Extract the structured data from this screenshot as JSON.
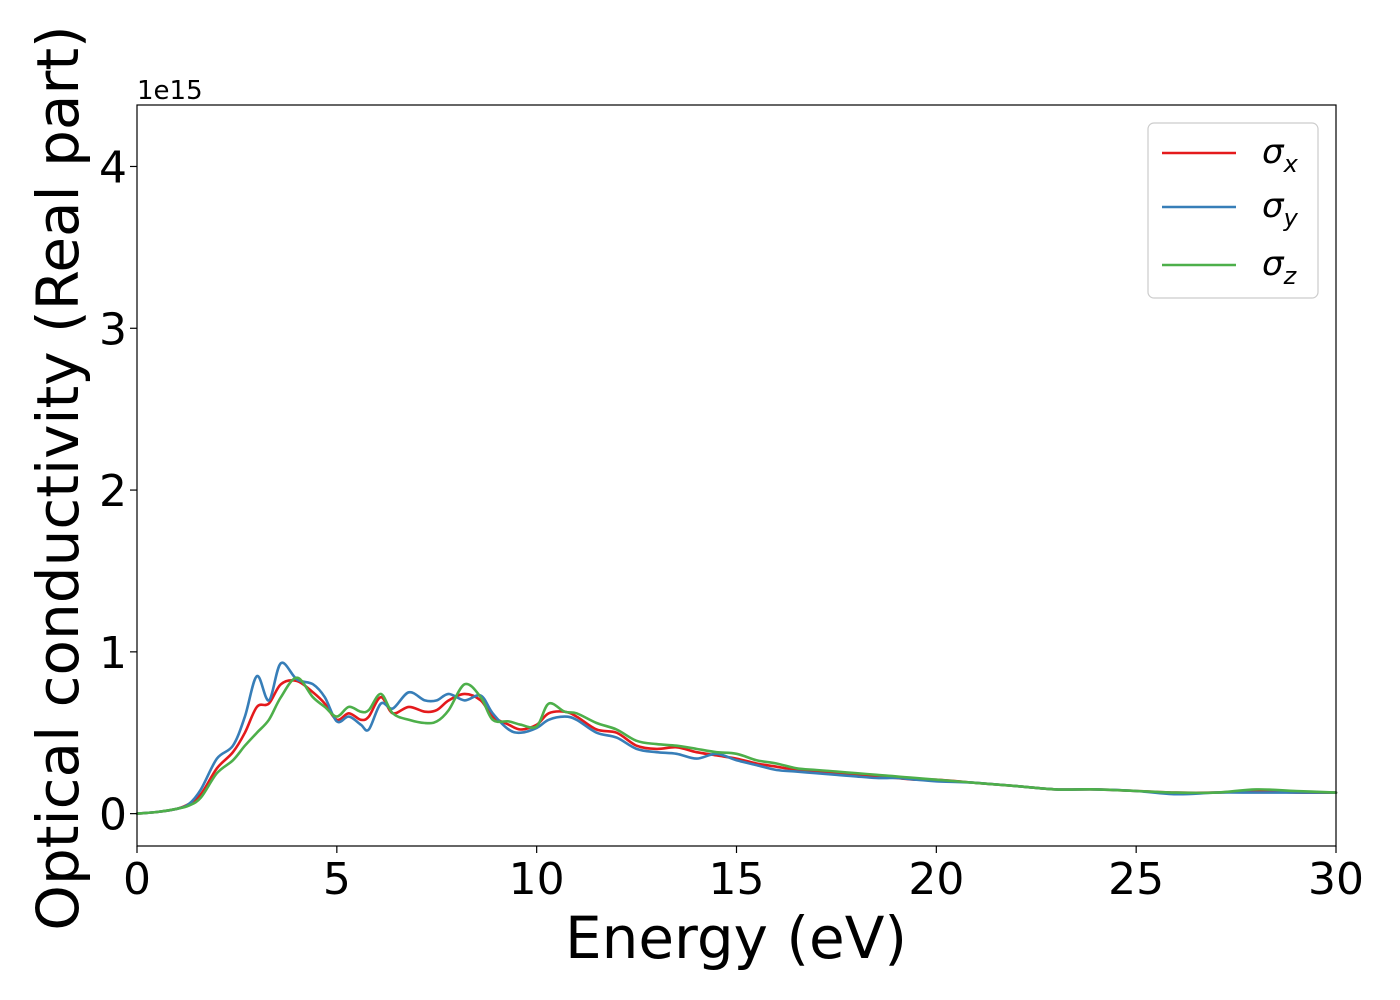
{
  "chart_data": {
    "type": "line",
    "xlabel": "Energy (eV)",
    "ylabel": "Optical conductivity (Real part)",
    "y_offset_label": "1e15",
    "xlim": [
      0,
      30
    ],
    "ylim": [
      -0.2,
      4.38
    ],
    "y_scale_multiplier": 1000000000000000.0,
    "x_ticks": [
      0,
      5,
      10,
      15,
      20,
      25,
      30
    ],
    "x_tick_labels": [
      "0",
      "5",
      "10",
      "15",
      "20",
      "25",
      "30"
    ],
    "y_ticks": [
      0,
      1,
      2,
      3,
      4
    ],
    "y_tick_labels": [
      "0",
      "1",
      "2",
      "3",
      "4"
    ],
    "grid": false,
    "legend_placement": "top-right",
    "x": [
      0,
      0.5,
      1.0,
      1.3,
      1.6,
      2.0,
      2.4,
      2.7,
      3.0,
      3.3,
      3.6,
      4.0,
      4.4,
      4.7,
      5.0,
      5.3,
      5.6,
      5.8,
      6.1,
      6.4,
      6.8,
      7.2,
      7.5,
      7.8,
      8.2,
      8.6,
      8.9,
      9.3,
      9.6,
      10.0,
      10.3,
      10.7,
      11.0,
      11.5,
      12.0,
      12.5,
      13.0,
      13.5,
      14.0,
      14.5,
      15.0,
      15.5,
      16.0,
      16.5,
      17.0,
      17.5,
      18.0,
      18.5,
      19.0,
      19.5,
      20.0,
      21.0,
      22.0,
      23.0,
      24.0,
      25.0,
      26.0,
      27.0,
      28.0,
      29.0,
      30.0
    ],
    "series": [
      {
        "name": "σ",
        "subscript": "x",
        "color": "#e41a1c",
        "values": [
          0,
          0.01,
          0.03,
          0.06,
          0.12,
          0.28,
          0.38,
          0.5,
          0.66,
          0.68,
          0.8,
          0.82,
          0.75,
          0.68,
          0.58,
          0.62,
          0.58,
          0.6,
          0.72,
          0.62,
          0.66,
          0.63,
          0.64,
          0.7,
          0.74,
          0.7,
          0.6,
          0.55,
          0.52,
          0.55,
          0.62,
          0.63,
          0.6,
          0.52,
          0.5,
          0.42,
          0.4,
          0.41,
          0.38,
          0.36,
          0.34,
          0.31,
          0.29,
          0.27,
          0.26,
          0.25,
          0.24,
          0.23,
          0.22,
          0.21,
          0.21,
          0.19,
          0.17,
          0.15,
          0.15,
          0.14,
          0.13,
          0.13,
          0.14,
          0.13,
          0.13
        ]
      },
      {
        "name": "σ",
        "subscript": "y",
        "color": "#377eb8",
        "values": [
          0,
          0.01,
          0.03,
          0.06,
          0.15,
          0.34,
          0.42,
          0.6,
          0.85,
          0.7,
          0.93,
          0.83,
          0.8,
          0.72,
          0.57,
          0.6,
          0.55,
          0.52,
          0.68,
          0.65,
          0.75,
          0.7,
          0.7,
          0.74,
          0.7,
          0.73,
          0.62,
          0.52,
          0.5,
          0.53,
          0.58,
          0.6,
          0.58,
          0.5,
          0.47,
          0.4,
          0.38,
          0.37,
          0.34,
          0.37,
          0.33,
          0.3,
          0.27,
          0.26,
          0.25,
          0.24,
          0.23,
          0.22,
          0.22,
          0.21,
          0.2,
          0.19,
          0.17,
          0.15,
          0.15,
          0.14,
          0.12,
          0.13,
          0.13,
          0.13,
          0.13
        ]
      },
      {
        "name": "σ",
        "subscript": "z",
        "color": "#4daf4a",
        "values": [
          0,
          0.01,
          0.03,
          0.05,
          0.1,
          0.25,
          0.33,
          0.42,
          0.5,
          0.58,
          0.72,
          0.84,
          0.72,
          0.66,
          0.6,
          0.66,
          0.63,
          0.64,
          0.74,
          0.62,
          0.58,
          0.56,
          0.57,
          0.64,
          0.8,
          0.72,
          0.58,
          0.57,
          0.55,
          0.54,
          0.68,
          0.63,
          0.62,
          0.56,
          0.52,
          0.45,
          0.43,
          0.42,
          0.4,
          0.38,
          0.37,
          0.33,
          0.31,
          0.28,
          0.27,
          0.26,
          0.25,
          0.24,
          0.23,
          0.22,
          0.21,
          0.19,
          0.17,
          0.15,
          0.15,
          0.14,
          0.13,
          0.13,
          0.15,
          0.14,
          0.13
        ]
      }
    ]
  }
}
